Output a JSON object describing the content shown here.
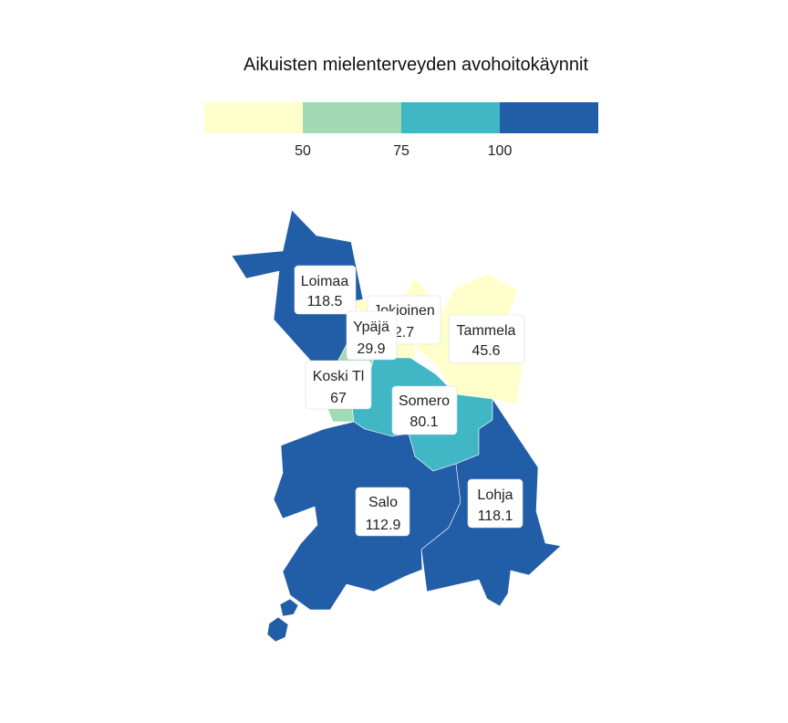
{
  "title": "Aikuisten mielenterveyden avohoitokäynnit",
  "legend": {
    "bins": [
      {
        "color": "#ffffcc"
      },
      {
        "color": "#a1dab4"
      },
      {
        "color": "#41b6c4"
      },
      {
        "color": "#225ea8"
      }
    ],
    "breaks": [
      "50",
      "75",
      "100"
    ]
  },
  "regions": [
    {
      "key": "loimaa",
      "name": "Loimaa",
      "value": "118.5",
      "color": "#225ea8"
    },
    {
      "key": "jokioinen",
      "name": "Jokioinen",
      "value": "2.7",
      "color": "#ffffcc"
    },
    {
      "key": "tammela",
      "name": "Tammela",
      "value": "45.6",
      "color": "#ffffcc"
    },
    {
      "key": "ypaja",
      "name": "Ypäjä",
      "value": "29.9",
      "color": "#ffffcc"
    },
    {
      "key": "koski",
      "name": "Koski Tl",
      "value": "67",
      "color": "#a1dab4"
    },
    {
      "key": "somero",
      "name": "Somero",
      "value": "80.1",
      "color": "#41b6c4"
    },
    {
      "key": "salo",
      "name": "Salo",
      "value": "112.9",
      "color": "#225ea8"
    },
    {
      "key": "lohja",
      "name": "Lohja",
      "value": "118.1",
      "color": "#225ea8"
    }
  ]
}
